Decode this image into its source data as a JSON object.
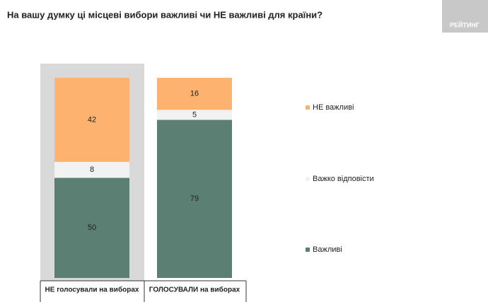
{
  "logo": "РЕЙТИНГ",
  "chart_data": {
    "type": "stacked-bar",
    "title": "На вашу думку ці місцеві вибори важливі чи НЕ важливі для країни?",
    "categories": [
      "НЕ голосували на виборах",
      "ГОЛОСУВАЛИ на виборах"
    ],
    "series": [
      {
        "name": "Важливі",
        "color": "#5b7f72",
        "values": [
          50,
          79
        ]
      },
      {
        "name": "Важко відповісти",
        "color": "#f2f2f2",
        "values": [
          8,
          5
        ]
      },
      {
        "name": "НЕ важливі",
        "color": "#fdb36f",
        "values": [
          42,
          16
        ]
      }
    ],
    "ylim": [
      0,
      100
    ]
  }
}
